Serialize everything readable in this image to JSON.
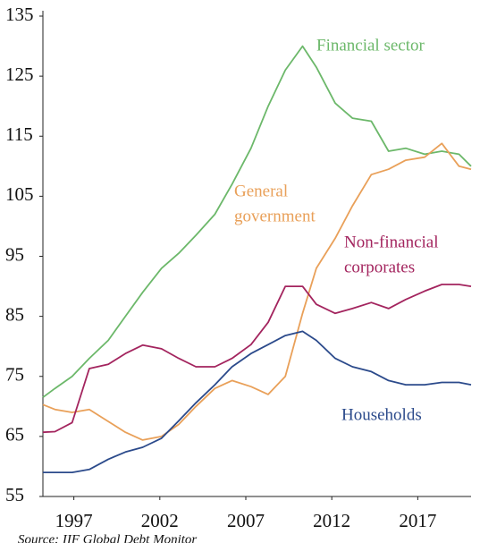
{
  "chart_data": {
    "type": "line",
    "x": [
      1995.2,
      1995.9,
      1996.9,
      1997.9,
      1999.0,
      2000.0,
      2001.0,
      2002.1,
      2003.1,
      2004.1,
      2005.2,
      2006.2,
      2007.3,
      2008.3,
      2009.3,
      2010.3,
      2011.1,
      2012.2,
      2013.2,
      2014.3,
      2015.3,
      2016.3,
      2017.4,
      2018.4,
      2019.4,
      2020.1
    ],
    "series": [
      {
        "name": "Financial sector",
        "color": "#6cb86a",
        "label_lines": [
          "Financial sector"
        ],
        "values": [
          71.5,
          73,
          75,
          78,
          81,
          85,
          89,
          93,
          95.5,
          98.5,
          102,
          107,
          113,
          120,
          126,
          130,
          126.5,
          120.5,
          118,
          117.5,
          112.5,
          113,
          112,
          112.5,
          112,
          110
        ]
      },
      {
        "name": "General government",
        "color": "#e9a059",
        "label_lines": [
          "General",
          "government"
        ],
        "values": [
          70.3,
          69.5,
          69,
          69.5,
          67.5,
          65.7,
          64.4,
          65,
          67,
          70,
          73,
          74.3,
          73.3,
          72,
          75,
          85.5,
          93,
          98,
          103.4,
          108.6,
          109.5,
          111,
          111.5,
          113.8,
          110,
          109.5
        ]
      },
      {
        "name": "Non-financial corporates",
        "color": "#a3245e",
        "label_lines": [
          "Non-financial",
          "corporates"
        ],
        "values": [
          65.7,
          65.8,
          67.3,
          76.3,
          77,
          78.8,
          80.2,
          79.6,
          78,
          76.6,
          76.6,
          78,
          80.3,
          84,
          90,
          90,
          87,
          85.5,
          86.3,
          87.3,
          86.3,
          87.8,
          89.2,
          90.3,
          90.3,
          90
        ]
      },
      {
        "name": "Households",
        "color": "#2b4a8b",
        "label_lines": [
          "Households"
        ],
        "values": [
          59,
          59,
          59,
          59.5,
          61.2,
          62.4,
          63.2,
          64.7,
          67.6,
          70.6,
          73.6,
          76.6,
          78.8,
          80.3,
          81.8,
          82.5,
          81,
          78,
          76.6,
          75.8,
          74.3,
          73.6,
          73.6,
          74,
          74,
          73.6
        ]
      }
    ],
    "xlim": [
      1995.2,
      2020.1
    ],
    "xticks": [
      1997,
      2002,
      2007,
      2012,
      2017
    ],
    "ylim": [
      55,
      135
    ],
    "yticks": [
      55,
      65,
      75,
      85,
      95,
      105,
      115,
      125,
      135
    ],
    "source": "Source: IIF Global Debt Monitor"
  }
}
